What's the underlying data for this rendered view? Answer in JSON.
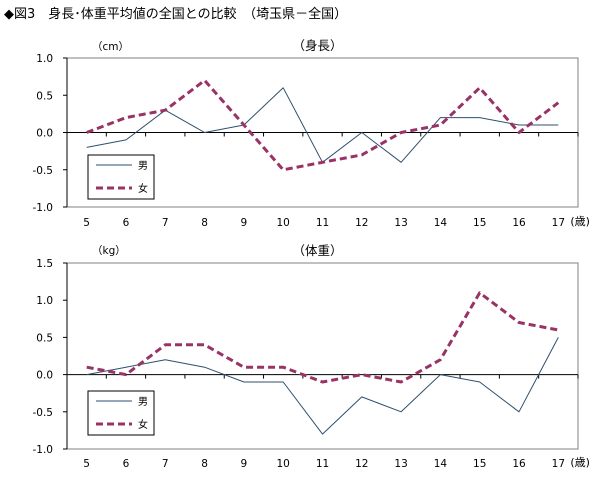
{
  "figure_title": "◆図3　身長･体重平均値の全国との比較　（埼玉県－全国）",
  "colors": {
    "male": "#2f4f6f",
    "female": "#993366",
    "axis": "#000000",
    "plot_border": "#808080"
  },
  "chart_data": [
    {
      "type": "line",
      "title": "（身長）",
      "unit_label": "（cm）",
      "x_unit": "(歳)",
      "x": [
        "5",
        "6",
        "7",
        "8",
        "9",
        "10",
        "11",
        "12",
        "13",
        "14",
        "15",
        "16",
        "17"
      ],
      "ylim": [
        -1.0,
        1.0
      ],
      "yticks": [
        "1.0",
        "0.5",
        "0.0",
        "-0.5",
        "-1.0"
      ],
      "grid": false,
      "legend_position": "bottom-left",
      "series": [
        {
          "name": "男",
          "style": "solid",
          "values": [
            -0.2,
            -0.1,
            0.3,
            0.0,
            0.1,
            0.6,
            -0.4,
            0.0,
            -0.4,
            0.2,
            0.2,
            0.1,
            0.1
          ]
        },
        {
          "name": "女",
          "style": "dashed",
          "values": [
            0.0,
            0.2,
            0.3,
            0.7,
            0.1,
            -0.5,
            -0.4,
            -0.3,
            0.0,
            0.1,
            0.6,
            0.0,
            0.4
          ]
        }
      ]
    },
    {
      "type": "line",
      "title": "（体重）",
      "unit_label": "（kg）",
      "x_unit": "(歳)",
      "x": [
        "5",
        "6",
        "7",
        "8",
        "9",
        "10",
        "11",
        "12",
        "13",
        "14",
        "15",
        "16",
        "17"
      ],
      "ylim": [
        -1.0,
        1.5
      ],
      "yticks": [
        "1.5",
        "1.0",
        "0.5",
        "0.0",
        "-0.5",
        "-1.0"
      ],
      "grid": false,
      "legend_position": "bottom-left",
      "series": [
        {
          "name": "男",
          "style": "solid",
          "values": [
            0.0,
            0.1,
            0.2,
            0.1,
            -0.1,
            -0.1,
            -0.8,
            -0.3,
            -0.5,
            0.0,
            -0.1,
            -0.5,
            0.5
          ]
        },
        {
          "name": "女",
          "style": "dashed",
          "values": [
            0.1,
            0.0,
            0.4,
            0.4,
            0.1,
            0.1,
            -0.1,
            0.0,
            -0.1,
            0.2,
            1.1,
            0.7,
            0.6
          ]
        }
      ]
    }
  ]
}
